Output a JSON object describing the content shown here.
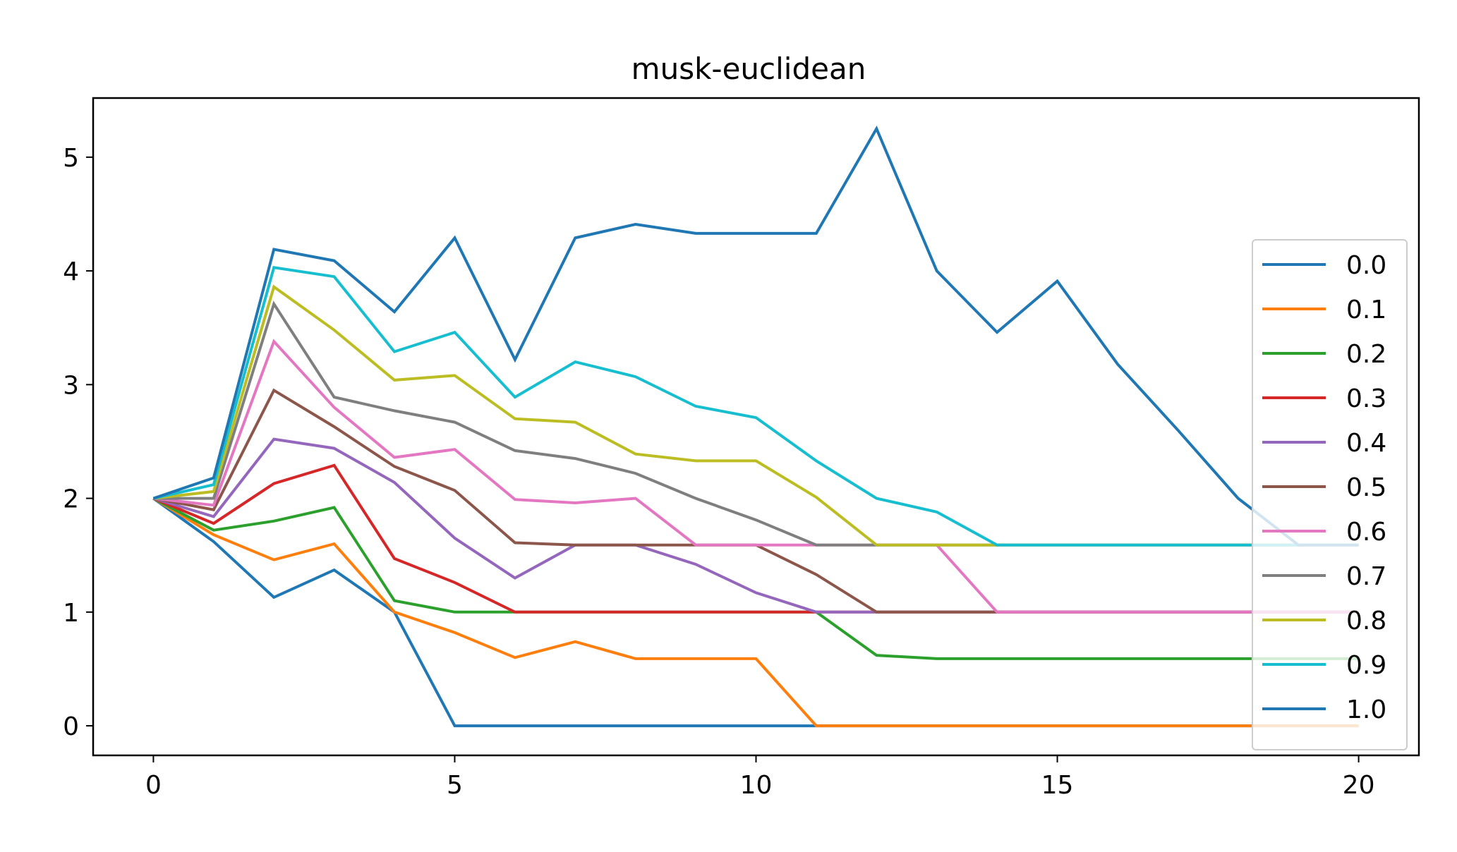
{
  "chart_data": {
    "type": "line",
    "title": "musk-euclidean",
    "xlabel": "",
    "ylabel": "",
    "xlim": [
      -1,
      21
    ],
    "ylim": [
      -0.26,
      5.52
    ],
    "x_ticks": [
      0,
      5,
      10,
      15,
      20
    ],
    "y_ticks": [
      0,
      1,
      2,
      3,
      4,
      5
    ],
    "grid": false,
    "legend_position": "right",
    "x": [
      0,
      1,
      2,
      3,
      4,
      5,
      6,
      7,
      8,
      9,
      10,
      11,
      12,
      13,
      14,
      15,
      16,
      17,
      18,
      19,
      20
    ],
    "series": [
      {
        "name": "0.0",
        "color": "#1f77b4",
        "values": [
          2.0,
          1.62,
          1.13,
          1.37,
          1.0,
          0,
          0,
          0,
          0,
          0,
          0,
          0,
          0,
          0,
          0,
          0,
          0,
          0,
          0,
          0,
          0
        ]
      },
      {
        "name": "0.1",
        "color": "#ff7f0e",
        "values": [
          2.0,
          1.68,
          1.46,
          1.6,
          1.0,
          0.82,
          0.6,
          0.74,
          0.59,
          0.59,
          0.59,
          0,
          0,
          0,
          0,
          0,
          0,
          0,
          0,
          0,
          0
        ]
      },
      {
        "name": "0.2",
        "color": "#2ca02c",
        "values": [
          2.0,
          1.72,
          1.8,
          1.92,
          1.1,
          1.0,
          1.0,
          1.0,
          1.0,
          1.0,
          1.0,
          1.0,
          0.62,
          0.59,
          0.59,
          0.59,
          0.59,
          0.59,
          0.59,
          0.59,
          0.59
        ]
      },
      {
        "name": "0.3",
        "color": "#d62728",
        "values": [
          2.0,
          1.78,
          2.13,
          2.29,
          1.47,
          1.26,
          1.0,
          1.0,
          1.0,
          1.0,
          1.0,
          1.0,
          1.0,
          1.0,
          1.0,
          1.0,
          1.0,
          1.0,
          1.0,
          1.0,
          1.0
        ]
      },
      {
        "name": "0.4",
        "color": "#9467bd",
        "values": [
          2.0,
          1.84,
          2.52,
          2.44,
          2.14,
          1.65,
          1.3,
          1.59,
          1.59,
          1.42,
          1.17,
          1.0,
          1.0,
          1.0,
          1.0,
          1.0,
          1.0,
          1.0,
          1.0,
          1.0,
          1.0
        ]
      },
      {
        "name": "0.5",
        "color": "#8c564b",
        "values": [
          2.0,
          1.9,
          2.95,
          2.63,
          2.28,
          2.07,
          1.61,
          1.59,
          1.59,
          1.59,
          1.59,
          1.33,
          1.0,
          1.0,
          1.0,
          1.0,
          1.0,
          1.0,
          1.0,
          1.0,
          1.0
        ]
      },
      {
        "name": "0.6",
        "color": "#e377c2",
        "values": [
          2.0,
          1.94,
          3.38,
          2.8,
          2.36,
          2.43,
          1.99,
          1.96,
          2.0,
          1.59,
          1.59,
          1.59,
          1.59,
          1.59,
          1.0,
          1.0,
          1.0,
          1.0,
          1.0,
          1.0,
          1.0
        ]
      },
      {
        "name": "0.7",
        "color": "#7f7f7f",
        "values": [
          2.0,
          2.0,
          3.71,
          2.89,
          2.77,
          2.67,
          2.42,
          2.35,
          2.22,
          2.0,
          1.81,
          1.59,
          1.59,
          1.59,
          1.59,
          1.59,
          1.59,
          1.59,
          1.59,
          1.59,
          1.59
        ]
      },
      {
        "name": "0.8",
        "color": "#bcbd22",
        "values": [
          2.0,
          2.06,
          3.86,
          3.48,
          3.04,
          3.08,
          2.7,
          2.67,
          2.39,
          2.33,
          2.33,
          2.01,
          1.59,
          1.59,
          1.59,
          1.59,
          1.59,
          1.59,
          1.59,
          1.59,
          1.59
        ]
      },
      {
        "name": "0.9",
        "color": "#17becf",
        "values": [
          2.0,
          2.12,
          4.03,
          3.95,
          3.29,
          3.46,
          2.89,
          3.2,
          3.07,
          2.81,
          2.71,
          2.33,
          2.0,
          1.88,
          1.59,
          1.59,
          1.59,
          1.59,
          1.59,
          1.59,
          1.59
        ]
      },
      {
        "name": "1.0",
        "color": "#1f77b4",
        "values": [
          2.0,
          2.18,
          4.19,
          4.09,
          3.64,
          4.29,
          3.22,
          4.29,
          4.41,
          4.33,
          4.33,
          4.33,
          5.25,
          4.0,
          3.46,
          3.91,
          3.18,
          2.6,
          2.0,
          1.59,
          1.59
        ]
      }
    ]
  }
}
